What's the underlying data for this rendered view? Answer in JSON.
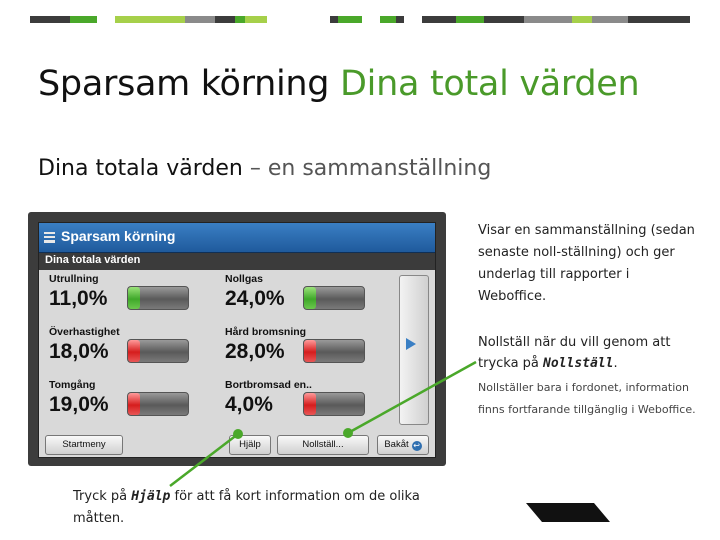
{
  "slide": {
    "title_main": "Sparsam körning",
    "title_accent": "Dina total värden",
    "subtitle_main": "Dina totala värden",
    "subtitle_rest": "– en sammanställning"
  },
  "colors": {
    "accent_green": "#4a9a2a",
    "header_blue": "#2a6db5",
    "gauge_green": "#3fa82a",
    "gauge_red": "#d51d1d"
  },
  "app": {
    "title": "Sparsam körning",
    "section_title": "Dina totala värden",
    "menu_icon": "list-icon",
    "metrics": [
      {
        "label": "Utrullning",
        "value": "11,0%",
        "gauge_color": "green",
        "gauge_level": 0.2
      },
      {
        "label": "Nollgas",
        "value": "24,0%",
        "gauge_color": "green",
        "gauge_level": 0.2
      },
      {
        "label": "Överhastighet",
        "value": "18,0%",
        "gauge_color": "red",
        "gauge_level": 0.2
      },
      {
        "label": "Hård bromsning",
        "value": "28,0%",
        "gauge_color": "red",
        "gauge_level": 0.2
      },
      {
        "label": "Tomgång",
        "value": "19,0%",
        "gauge_color": "red",
        "gauge_level": 0.2
      },
      {
        "label": "Bortbromsad en..",
        "value": "4,0%",
        "gauge_color": "red",
        "gauge_level": 0.2
      }
    ],
    "buttons": {
      "start": "Startmeny",
      "help": "Hjälp",
      "reset": "Nollställ...",
      "back": "Bakåt"
    }
  },
  "notes": {
    "summary": "Visar en sammanställning (sedan senaste noll-ställning) och ger underlag till rapporter i Weboffice.",
    "reset_prefix": "Nollställ när du vill genom att trycka på ",
    "reset_keyword": "Nollställ",
    "reset_suffix": ".",
    "reset_detail": "Nollställer bara i fordonet, information finns fortfarande tillgänglig i Weboffice.",
    "help_prefix": "Tryck på ",
    "help_keyword": "Hjälp",
    "help_suffix": " för att få kort information om de olika måtten."
  }
}
